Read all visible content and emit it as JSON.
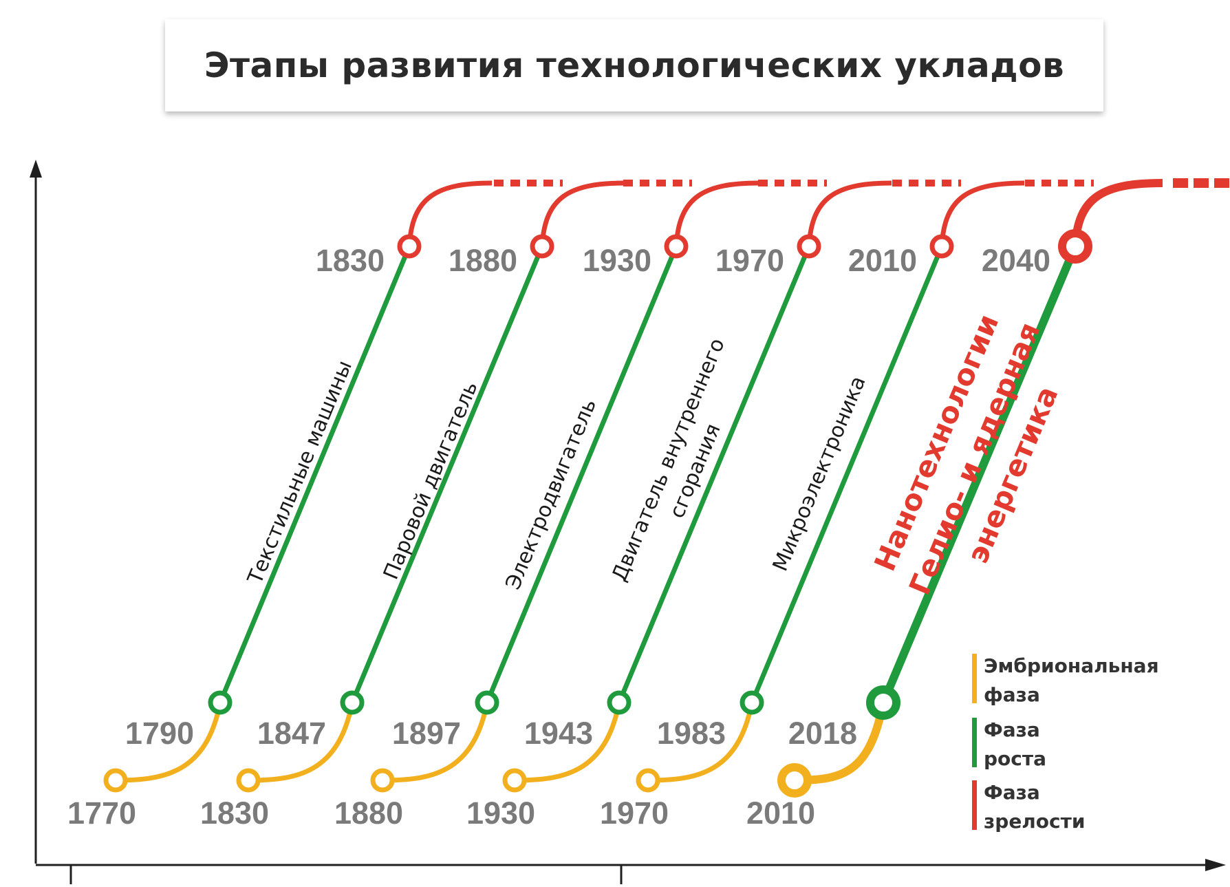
{
  "title": "Этапы развития технологических укладов",
  "colors": {
    "embryonic": "#f2b01e",
    "growth": "#1f9a3c",
    "maturity": "#e23a2e",
    "axis": "#1f1f1f",
    "year_text": "#7a7a7a"
  },
  "waves": [
    {
      "technology": [
        "Текстильные машины"
      ],
      "embryonic_start": "1770",
      "growth_start": "1790",
      "maturity_start": "1830"
    },
    {
      "technology": [
        "Паровой двигатель"
      ],
      "embryonic_start": "1830",
      "growth_start": "1847",
      "maturity_start": "1880"
    },
    {
      "technology": [
        "Электродвигатель"
      ],
      "embryonic_start": "1880",
      "growth_start": "1897",
      "maturity_start": "1930"
    },
    {
      "technology": [
        "Двигатель внутреннего",
        "сгорания"
      ],
      "embryonic_start": "1930",
      "growth_start": "1943",
      "maturity_start": "1970"
    },
    {
      "technology": [
        "Микроэлектроника"
      ],
      "embryonic_start": "1970",
      "growth_start": "1983",
      "maturity_start": "2010"
    },
    {
      "technology": [
        "Нанотехнологии",
        "Гелио- и ядерная",
        "энергетика"
      ],
      "embryonic_start": "2010",
      "growth_start": "2018",
      "maturity_start": "2040",
      "highlighted": true
    }
  ],
  "legend": [
    {
      "phase": "embryonic",
      "lines": [
        "Эмбриональная",
        "фаза"
      ]
    },
    {
      "phase": "growth",
      "lines": [
        "Фаза",
        "роста"
      ]
    },
    {
      "phase": "maturity",
      "lines": [
        "Фаза",
        "зрелости"
      ]
    }
  ]
}
